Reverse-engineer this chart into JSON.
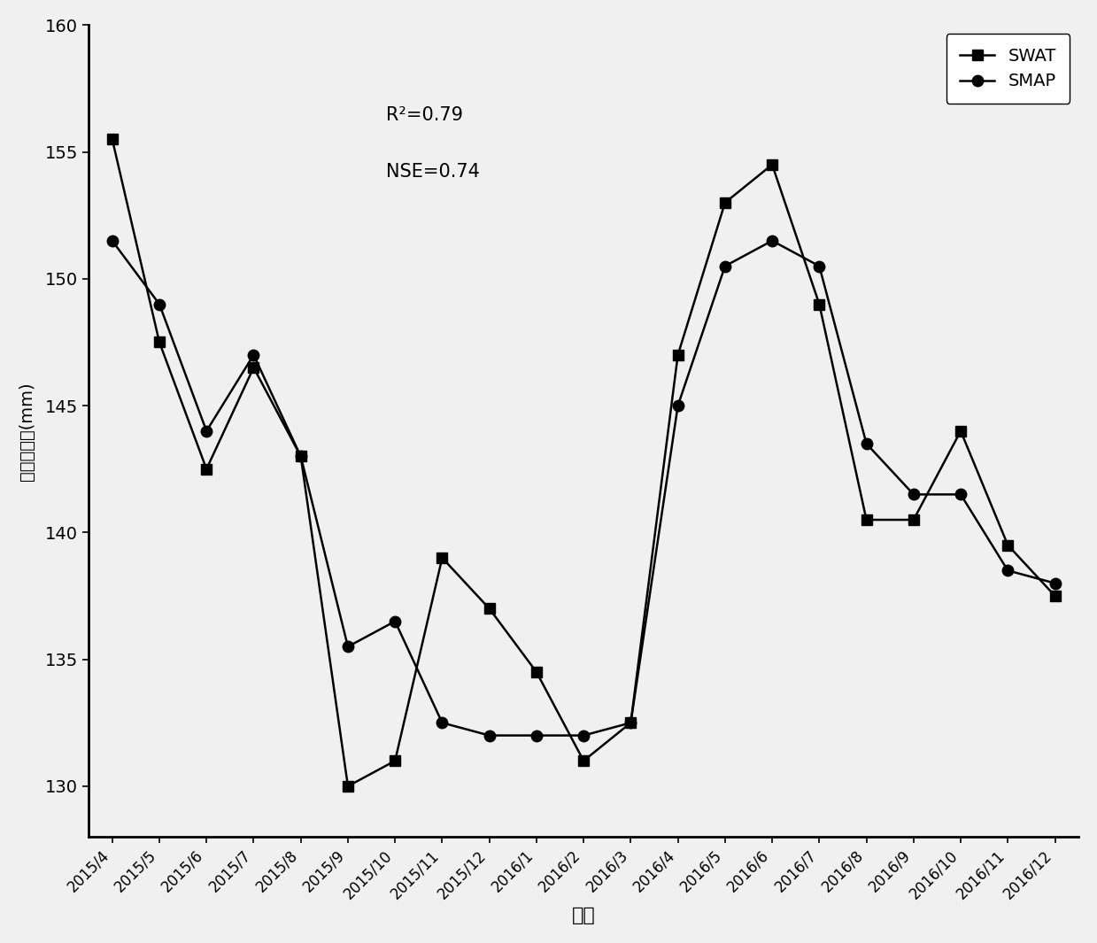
{
  "x_labels": [
    "2015/4",
    "2015/5",
    "2015/6",
    "2015/7",
    "2015/8",
    "2015/9",
    "2015/10",
    "2015/11",
    "2015/12",
    "2016/1",
    "2016/2",
    "2016/3",
    "2016/4",
    "2016/5",
    "2016/6",
    "2016/7",
    "2016/8",
    "2016/9",
    "2016/10",
    "2016/11",
    "2016/12"
  ],
  "swat_values": [
    155.5,
    147.5,
    142.5,
    146.5,
    143.0,
    130.0,
    131.0,
    139.0,
    137.0,
    134.5,
    131.0,
    132.5,
    147.0,
    153.0,
    154.5,
    149.0,
    140.5,
    140.5,
    144.0,
    139.5,
    137.5
  ],
  "smap_values": [
    151.5,
    149.0,
    144.0,
    147.0,
    143.0,
    135.5,
    136.5,
    132.5,
    132.0,
    132.0,
    132.0,
    132.5,
    145.0,
    150.5,
    151.5,
    150.5,
    143.5,
    141.5,
    141.5,
    138.5,
    138.0
  ],
  "ylabel": "土壤含水量(mm)",
  "xlabel": "日期",
  "annotation_line1": "R²=0.79",
  "annotation_line2": "NSE=0.74",
  "ylim_min": 128,
  "ylim_max": 160,
  "yticks": [
    130,
    135,
    140,
    145,
    150,
    155,
    160
  ],
  "line_color": "#000000",
  "bg_color": "#f0f0f0",
  "legend_swat": "SWAT",
  "legend_smap": "SMAP"
}
